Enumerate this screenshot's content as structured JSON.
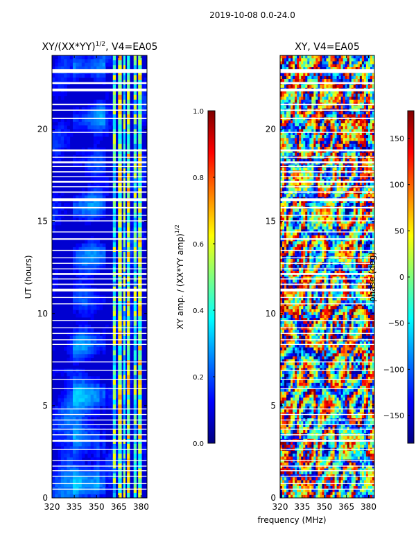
{
  "figure": {
    "suptitle": "2019-10-08 0.0-24.0",
    "xlabel": "frequency (MHz)",
    "colors": {
      "background": "#ffffff",
      "gap": "#ffffff",
      "axis": "#000000",
      "jet": [
        "#00007f",
        "#0000ff",
        "#007fff",
        "#00ffff",
        "#7fff7f",
        "#ffff00",
        "#ff7f00",
        "#ff0000",
        "#7f0000"
      ]
    }
  },
  "chart_data": [
    {
      "type": "heatmap",
      "title_main": "XY/(XX*YY)",
      "title_sup": "1/2",
      "title_tail": ", V4=EA05",
      "xlabel": "frequency (MHz)",
      "ylabel": "UT (hours)",
      "xlim": [
        320,
        384
      ],
      "ylim": [
        0,
        24
      ],
      "xticks": [
        320,
        335,
        350,
        365,
        380
      ],
      "yticks": [
        0,
        5,
        10,
        15,
        20
      ],
      "colorbar": {
        "label_main": "XY amp. / (XX*YY amp)",
        "label_sup": "1/2",
        "range": [
          0.0,
          1.0
        ],
        "ticks": [
          "0.0",
          "0.2",
          "0.4",
          "0.6",
          "0.8",
          "1.0"
        ],
        "tick_values": [
          0.0,
          0.2,
          0.4,
          0.6,
          0.8,
          1.0
        ]
      },
      "bright_channels_mhz": [
        [
          361,
          363
        ],
        [
          364.5,
          367
        ],
        [
          368,
          369.5
        ],
        [
          370.5,
          372.5
        ],
        [
          375,
          377
        ],
        [
          378,
          380.5
        ]
      ],
      "typical_value": 0.12,
      "channel_value": 0.55
    },
    {
      "type": "heatmap",
      "title": "XY, V4=EA05",
      "xlim": [
        320,
        384
      ],
      "ylim": [
        0,
        24
      ],
      "xticks": [
        320,
        335,
        350,
        365,
        380
      ],
      "yticks": [
        0,
        5,
        10,
        15,
        20
      ],
      "colorbar": {
        "label": "phase (deg)",
        "range": [
          -180,
          180
        ],
        "ticks": [
          "−150",
          "−100",
          "−50",
          "0",
          "50",
          "100",
          "150"
        ],
        "tick_values": [
          -150,
          -100,
          -50,
          0,
          50,
          100,
          150
        ]
      }
    }
  ],
  "flagged_time_ranges_hours": [
    [
      23.05,
      23.25
    ],
    [
      22.45,
      22.55
    ],
    [
      22.05,
      22.2
    ],
    [
      21.3,
      21.38
    ],
    [
      21.0,
      21.06
    ],
    [
      20.55,
      20.62
    ],
    [
      19.8,
      19.85
    ],
    [
      18.8,
      18.9
    ],
    [
      18.45,
      18.5
    ],
    [
      18.15,
      18.25
    ],
    [
      17.95,
      18.0
    ],
    [
      17.65,
      17.72
    ],
    [
      17.4,
      17.45
    ],
    [
      17.1,
      17.2
    ],
    [
      16.85,
      16.9
    ],
    [
      16.55,
      16.62
    ],
    [
      16.1,
      16.25
    ],
    [
      15.7,
      15.78
    ],
    [
      15.3,
      15.35
    ],
    [
      15.0,
      15.05
    ],
    [
      14.4,
      14.45
    ],
    [
      14.0,
      14.08
    ],
    [
      13.4,
      13.45
    ],
    [
      13.0,
      13.05
    ],
    [
      12.7,
      12.75
    ],
    [
      12.4,
      12.45
    ],
    [
      12.1,
      12.2
    ],
    [
      11.85,
      11.9
    ],
    [
      11.55,
      11.62
    ],
    [
      11.2,
      11.35
    ],
    [
      10.85,
      10.9
    ],
    [
      10.5,
      10.55
    ],
    [
      9.6,
      9.65
    ],
    [
      9.2,
      9.25
    ],
    [
      8.9,
      8.95
    ],
    [
      8.55,
      8.6
    ],
    [
      8.3,
      8.35
    ],
    [
      7.35,
      7.4
    ],
    [
      6.9,
      6.95
    ],
    [
      6.4,
      6.45
    ],
    [
      5.9,
      5.95
    ],
    [
      4.8,
      4.85
    ],
    [
      4.5,
      4.55
    ],
    [
      4.2,
      4.25
    ],
    [
      3.95,
      4.0
    ],
    [
      3.7,
      3.75
    ],
    [
      3.4,
      3.45
    ],
    [
      3.05,
      3.15
    ],
    [
      2.6,
      2.65
    ],
    [
      2.0,
      2.05
    ],
    [
      1.7,
      1.75
    ],
    [
      1.45,
      1.5
    ],
    [
      1.15,
      1.2
    ],
    [
      0.75,
      0.8
    ],
    [
      0.45,
      0.5
    ]
  ]
}
